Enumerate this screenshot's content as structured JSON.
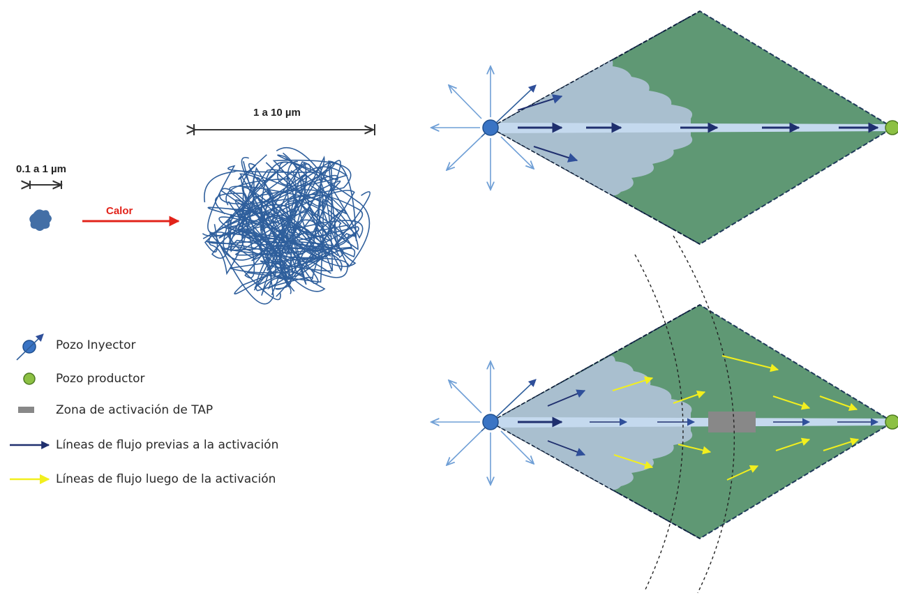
{
  "particle": {
    "small_size_label": "0.1 a 1 µm",
    "large_size_label": "1 a 10 µm",
    "heat_label": "Calor"
  },
  "legend": {
    "items": [
      {
        "key": "injector",
        "label": "Pozo Inyector"
      },
      {
        "key": "producer",
        "label": "Pozo productor"
      },
      {
        "key": "activation_zone",
        "label": "Zona de activación de TAP"
      },
      {
        "key": "flow_before",
        "label": "Líneas de flujo previas a la activación"
      },
      {
        "key": "flow_after",
        "label": "Líneas de flujo luego de la activación"
      }
    ]
  },
  "colors": {
    "particle_blue": "#2f5f9c",
    "heat_arrow": "#e2231a",
    "injector_well": "#3a74c4",
    "producer_well": "#8cc043",
    "reservoir_green": "#5f9874",
    "swept_zone": "#a9bfcf",
    "flow_channel": "#c4d9ee",
    "activation_zone": "#888888",
    "flow_before_arrow": "#1f2f6e",
    "flow_after_arrow": "#f2ef1e",
    "outflow_arrow": "#6f9fd6"
  }
}
